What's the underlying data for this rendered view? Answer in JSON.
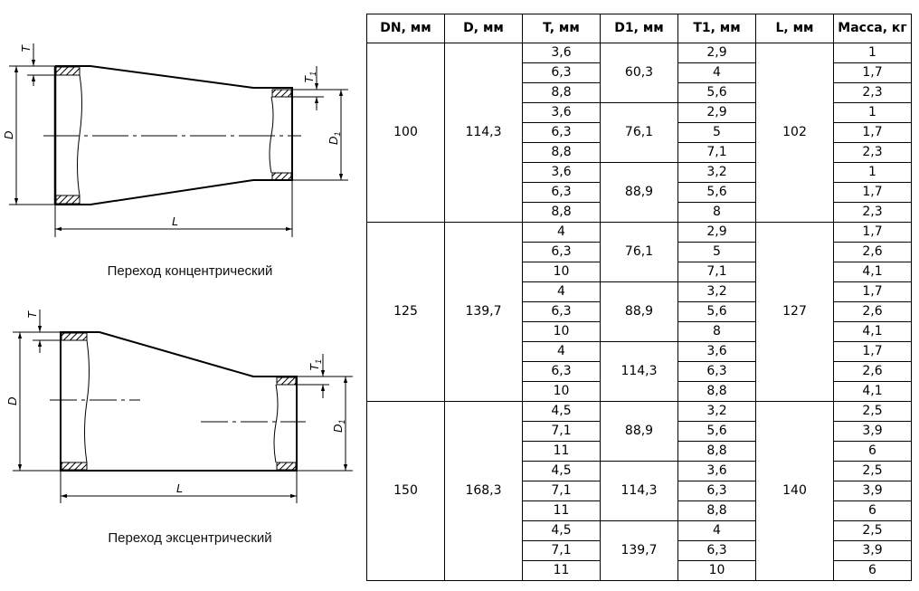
{
  "diagrams": {
    "labels": {
      "D": "D",
      "T": "T",
      "T1": "T",
      "T1_sub": "1",
      "D1": "D",
      "D1_sub": "1",
      "L": "L"
    },
    "concentric_caption": "Переход концентрический",
    "eccentric_caption": "Переход эксцентрический"
  },
  "table": {
    "headers": [
      "DN, мм",
      "D, мм",
      "T, мм",
      "D1, мм",
      "T1, мм",
      "L, мм",
      "Масса, кг"
    ],
    "groups": [
      {
        "DN": "100",
        "D": "114,3",
        "L": "102",
        "sub": [
          {
            "D1": "60,3",
            "rows": [
              [
                "3,6",
                "2,9",
                "1"
              ],
              [
                "6,3",
                "4",
                "1,7"
              ],
              [
                "8,8",
                "5,6",
                "2,3"
              ]
            ]
          },
          {
            "D1": "76,1",
            "rows": [
              [
                "3,6",
                "2,9",
                "1"
              ],
              [
                "6,3",
                "5",
                "1,7"
              ],
              [
                "8,8",
                "7,1",
                "2,3"
              ]
            ]
          },
          {
            "D1": "88,9",
            "rows": [
              [
                "3,6",
                "3,2",
                "1"
              ],
              [
                "6,3",
                "5,6",
                "1,7"
              ],
              [
                "8,8",
                "8",
                "2,3"
              ]
            ]
          }
        ]
      },
      {
        "DN": "125",
        "D": "139,7",
        "L": "127",
        "sub": [
          {
            "D1": "76,1",
            "rows": [
              [
                "4",
                "2,9",
                "1,7"
              ],
              [
                "6,3",
                "5",
                "2,6"
              ],
              [
                "10",
                "7,1",
                "4,1"
              ]
            ]
          },
          {
            "D1": "88,9",
            "rows": [
              [
                "4",
                "3,2",
                "1,7"
              ],
              [
                "6,3",
                "5,6",
                "2,6"
              ],
              [
                "10",
                "8",
                "4,1"
              ]
            ]
          },
          {
            "D1": "114,3",
            "rows": [
              [
                "4",
                "3,6",
                "1,7"
              ],
              [
                "6,3",
                "6,3",
                "2,6"
              ],
              [
                "10",
                "8,8",
                "4,1"
              ]
            ]
          }
        ]
      },
      {
        "DN": "150",
        "D": "168,3",
        "L": "140",
        "sub": [
          {
            "D1": "88,9",
            "rows": [
              [
                "4,5",
                "3,2",
                "2,5"
              ],
              [
                "7,1",
                "5,6",
                "3,9"
              ],
              [
                "11",
                "8,8",
                "6"
              ]
            ]
          },
          {
            "D1": "114,3",
            "rows": [
              [
                "4,5",
                "3,6",
                "2,5"
              ],
              [
                "7,1",
                "6,3",
                "3,9"
              ],
              [
                "11",
                "8,8",
                "6"
              ]
            ]
          },
          {
            "D1": "139,7",
            "rows": [
              [
                "4,5",
                "4",
                "2,5"
              ],
              [
                "7,1",
                "6,3",
                "3,9"
              ],
              [
                "11",
                "10",
                "6"
              ]
            ]
          }
        ]
      }
    ]
  }
}
